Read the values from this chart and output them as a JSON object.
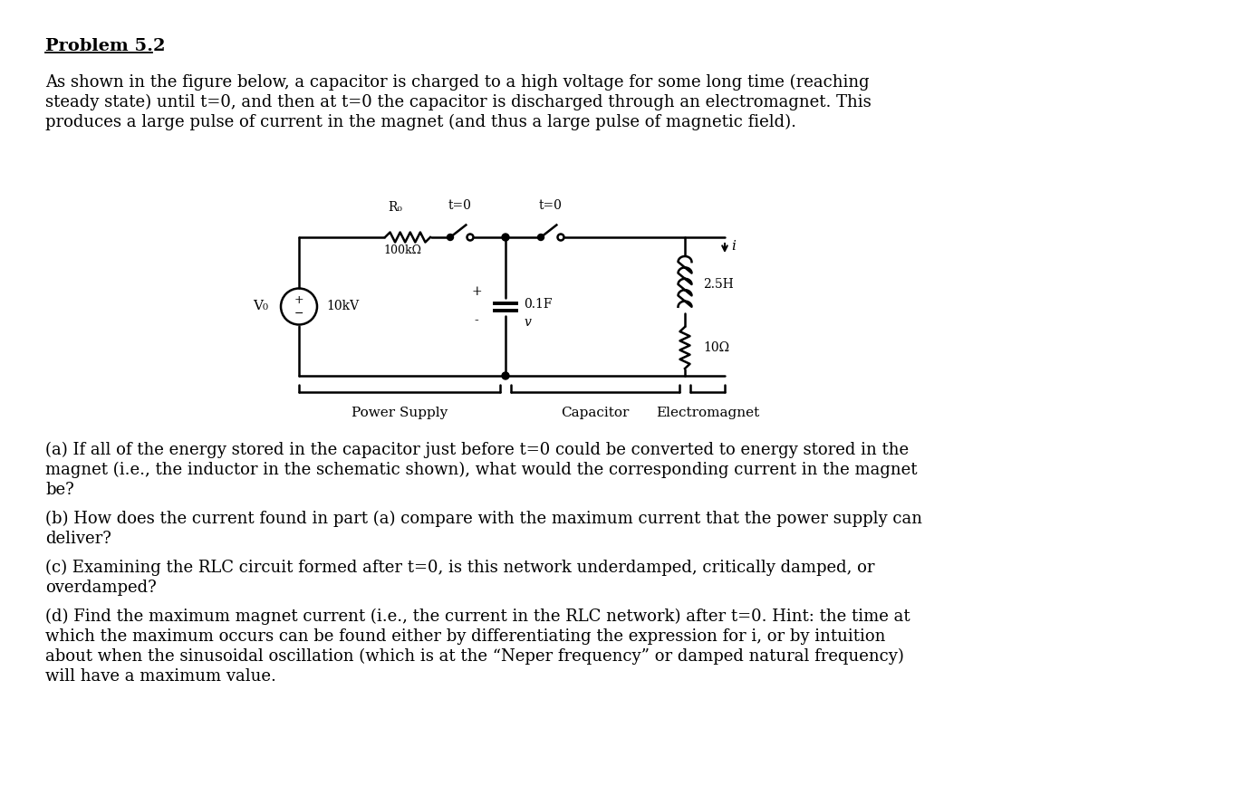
{
  "background_color": "#ffffff",
  "title": "Problem 5.2",
  "intro_text": "As shown in the figure below, a capacitor is charged to a high voltage for some long time (reaching\nsteady state) until t=0, and then at t=0 the capacitor is discharged through an electromagnet. This\nproduces a large pulse of current in the magnet (and thus a large pulse of magnetic field).",
  "part_a": "(a) If all of the energy stored in the capacitor just before t=0 could be converted to energy stored in the\nmagnet (i.e., the inductor in the schematic shown), what would the corresponding current in the magnet\nbe?",
  "part_b": "(b) How does the current found in part (a) compare with the maximum current that the power supply can\ndeliver?",
  "part_c": "(c) Examining the RLC circuit formed after t=0, is this network underdamped, critically damped, or\noverdamped?",
  "part_d": "(d) Find the maximum magnet current (i.e., the current in the RLC network) after t=0. Hint: the time at\nwhich the maximum occurs can be found either by differentiating the expression for i, or by intuition\nabout when the sinusoidal oscillation (which is at the “Neper frequency” or damped natural frequency)\nwill have a maximum value.",
  "font_size_title": 14,
  "font_size_body": 13,
  "text_color": "#000000",
  "circuit_labels": {
    "R0": "R₀",
    "R0_val": "100kΩ",
    "V0": "V₀",
    "V0_val": "10kV",
    "C_val": "0.1F",
    "C_v": "v",
    "L_val": "2.5H",
    "R_val": "10Ω",
    "sw1": "t=0",
    "sw2": "t=0",
    "i_label": "i",
    "plus": "+",
    "minus": "-",
    "ps_label": "Power Supply",
    "cap_label": "Capacitor",
    "em_label": "Electromagnet"
  }
}
